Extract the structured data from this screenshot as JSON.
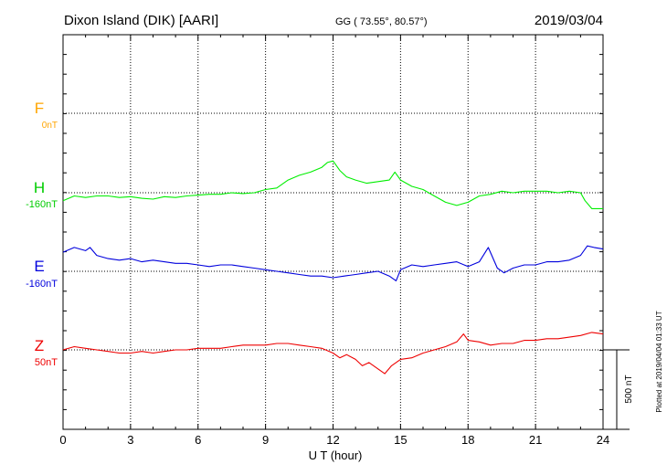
{
  "header": {
    "station": "Dixon Island (DIK)  [AARI]",
    "coords": "GG ( 73.55°,  80.57°)",
    "date": "2019/03/04"
  },
  "plotted_note": "Plotted at 2019/04/04 01:33 UT",
  "colors": {
    "F": "#ffa500",
    "H": "#00ee00",
    "E": "#0000dd",
    "Z": "#ee0000",
    "axis": "#000000"
  },
  "chart_data": {
    "type": "line",
    "xlabel": "U T (hour)",
    "xlim": [
      0,
      24
    ],
    "x_ticks": [
      "0",
      "3",
      "6",
      "9",
      "12",
      "15",
      "18",
      "21",
      "24"
    ],
    "scale_bar": "500 nT",
    "scale_bar_nT": 500,
    "components": [
      {
        "id": "F",
        "label": "F",
        "baseline": "0nT",
        "color": "#ffa500",
        "has_data": false
      },
      {
        "id": "H",
        "label": "H",
        "baseline": "-160nT",
        "color": "#00ee00",
        "has_data": true
      },
      {
        "id": "E",
        "label": "E",
        "baseline": "-160nT",
        "color": "#0000dd",
        "has_data": true
      },
      {
        "id": "Z",
        "label": "Z",
        "baseline": "50nT",
        "color": "#ee0000",
        "has_data": true
      }
    ],
    "series": [
      {
        "name": "H",
        "x": [
          0,
          0.5,
          1,
          1.5,
          2,
          2.5,
          3,
          3.5,
          4,
          4.5,
          5,
          5.5,
          6,
          6.5,
          7,
          7.5,
          8,
          8.5,
          9,
          9.5,
          10,
          10.5,
          11,
          11.5,
          11.75,
          12,
          12.3,
          12.6,
          13,
          13.5,
          14,
          14.5,
          14.75,
          15,
          15.5,
          16,
          16.5,
          17,
          17.5,
          18,
          18.5,
          19,
          19.5,
          20,
          20.5,
          21,
          21.5,
          22,
          22.5,
          23,
          23.2,
          23.5,
          24
        ],
        "values": [
          -50,
          -20,
          -30,
          -20,
          -20,
          -30,
          -25,
          -35,
          -40,
          -25,
          -30,
          -20,
          -15,
          -10,
          -10,
          0,
          -5,
          0,
          20,
          30,
          80,
          110,
          130,
          160,
          190,
          200,
          140,
          100,
          80,
          60,
          70,
          80,
          130,
          80,
          40,
          20,
          -20,
          -60,
          -80,
          -60,
          -20,
          -10,
          10,
          0,
          10,
          10,
          10,
          0,
          10,
          0,
          -50,
          -100,
          -100
        ]
      },
      {
        "name": "E",
        "x": [
          0,
          0.5,
          1,
          1.2,
          1.5,
          2,
          2.5,
          3,
          3.5,
          4,
          4.5,
          5,
          5.5,
          6,
          6.5,
          7,
          7.5,
          8,
          8.5,
          9,
          9.5,
          10,
          10.5,
          11,
          11.5,
          12,
          12.5,
          13,
          13.5,
          14,
          14.5,
          14.8,
          15,
          15.5,
          16,
          16.5,
          17,
          17.5,
          18,
          18.5,
          18.9,
          19.3,
          19.6,
          20,
          20.5,
          21,
          21.5,
          22,
          22.5,
          23,
          23.3,
          23.6,
          24
        ],
        "values": [
          120,
          150,
          130,
          150,
          100,
          80,
          70,
          80,
          60,
          70,
          60,
          50,
          50,
          40,
          30,
          40,
          40,
          30,
          20,
          10,
          0,
          -10,
          -20,
          -30,
          -30,
          -40,
          -30,
          -20,
          -10,
          0,
          -30,
          -60,
          10,
          40,
          30,
          40,
          50,
          60,
          30,
          60,
          150,
          20,
          -10,
          20,
          40,
          40,
          60,
          60,
          70,
          100,
          160,
          150,
          140
        ]
      },
      {
        "name": "Z",
        "x": [
          0,
          0.5,
          1,
          1.5,
          2,
          2.5,
          3,
          3.5,
          4,
          4.5,
          5,
          5.5,
          6,
          6.5,
          7,
          7.5,
          8,
          8.5,
          9,
          9.5,
          10,
          10.5,
          11,
          11.5,
          12,
          12.3,
          12.6,
          13,
          13.3,
          13.6,
          14,
          14.3,
          14.6,
          15,
          15.5,
          16,
          16.5,
          17,
          17.5,
          17.8,
          18,
          18.5,
          19,
          19.5,
          20,
          20.5,
          21,
          21.5,
          22,
          22.5,
          23,
          23.5,
          24
        ],
        "values": [
          0,
          20,
          10,
          0,
          -10,
          -20,
          -20,
          -10,
          -20,
          -10,
          0,
          0,
          10,
          10,
          10,
          20,
          30,
          30,
          30,
          40,
          40,
          30,
          20,
          10,
          -20,
          -50,
          -30,
          -60,
          -100,
          -80,
          -120,
          -150,
          -100,
          -60,
          -50,
          -20,
          0,
          20,
          50,
          100,
          60,
          50,
          30,
          40,
          40,
          60,
          60,
          70,
          70,
          80,
          90,
          110,
          100
        ]
      }
    ]
  }
}
